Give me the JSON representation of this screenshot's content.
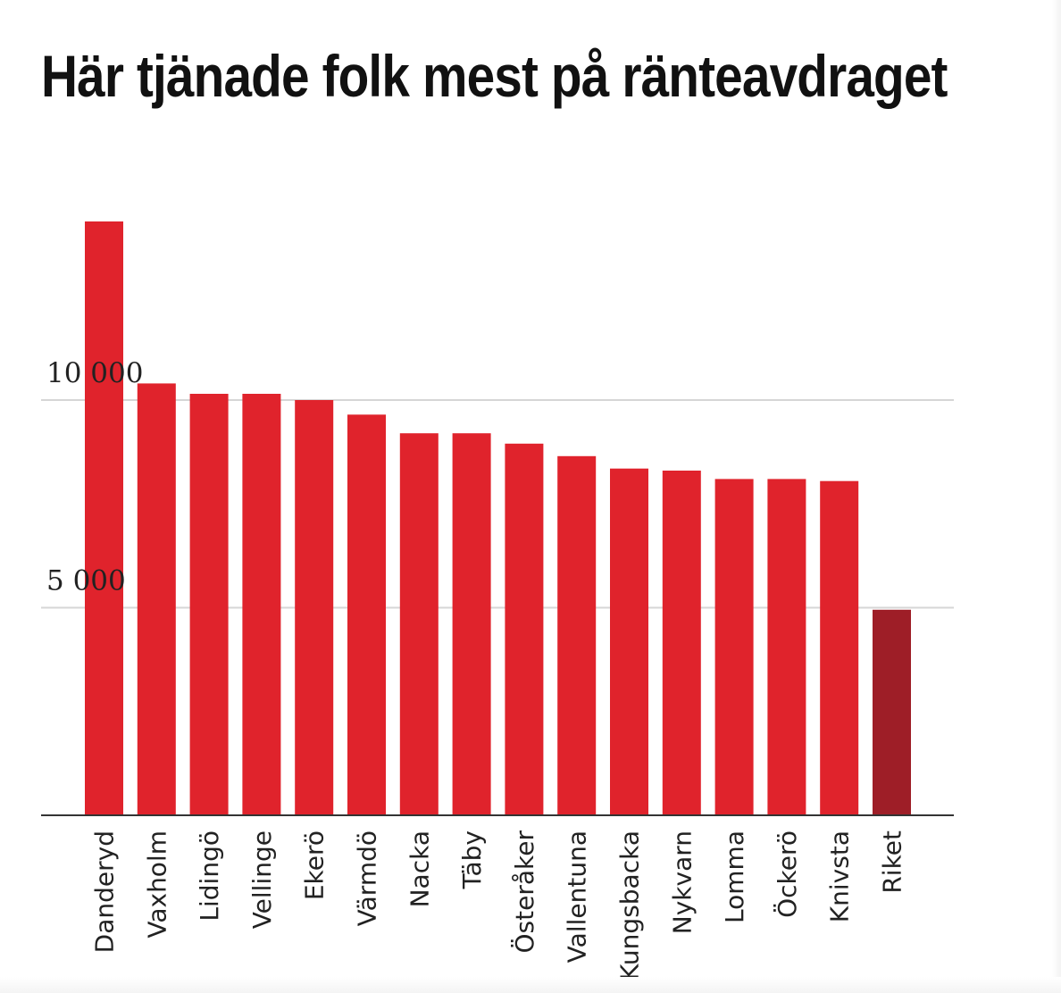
{
  "chart_data": {
    "type": "bar",
    "title": "Här tjänade folk mest på ränteavdraget",
    "xlabel": "",
    "ylabel": "",
    "ylim": [
      0,
      15000
    ],
    "yticks": [
      {
        "value": 5000,
        "label": "5 000"
      },
      {
        "value": 10000,
        "label": "10 000"
      }
    ],
    "grid": true,
    "categories": [
      "Danderyd",
      "Vaxholm",
      "Lidingö",
      "Vellinge",
      "Ekerö",
      "Värmdö",
      "Nacka",
      "Täby",
      "Österåker",
      "Vallentuna",
      "Kungsbacka",
      "Nykvarn",
      "Lomma",
      "Öckerö",
      "Knivsta",
      "Riket"
    ],
    "values": [
      14300,
      10400,
      10150,
      10150,
      10000,
      9650,
      9200,
      9200,
      8950,
      8650,
      8350,
      8300,
      8100,
      8100,
      8050,
      4950
    ],
    "colors": {
      "bar": "#e0232c",
      "highlight": "#9e1e27",
      "grid": "#d6d6d6",
      "axis": "#333333"
    },
    "highlight_category": "Riket"
  }
}
